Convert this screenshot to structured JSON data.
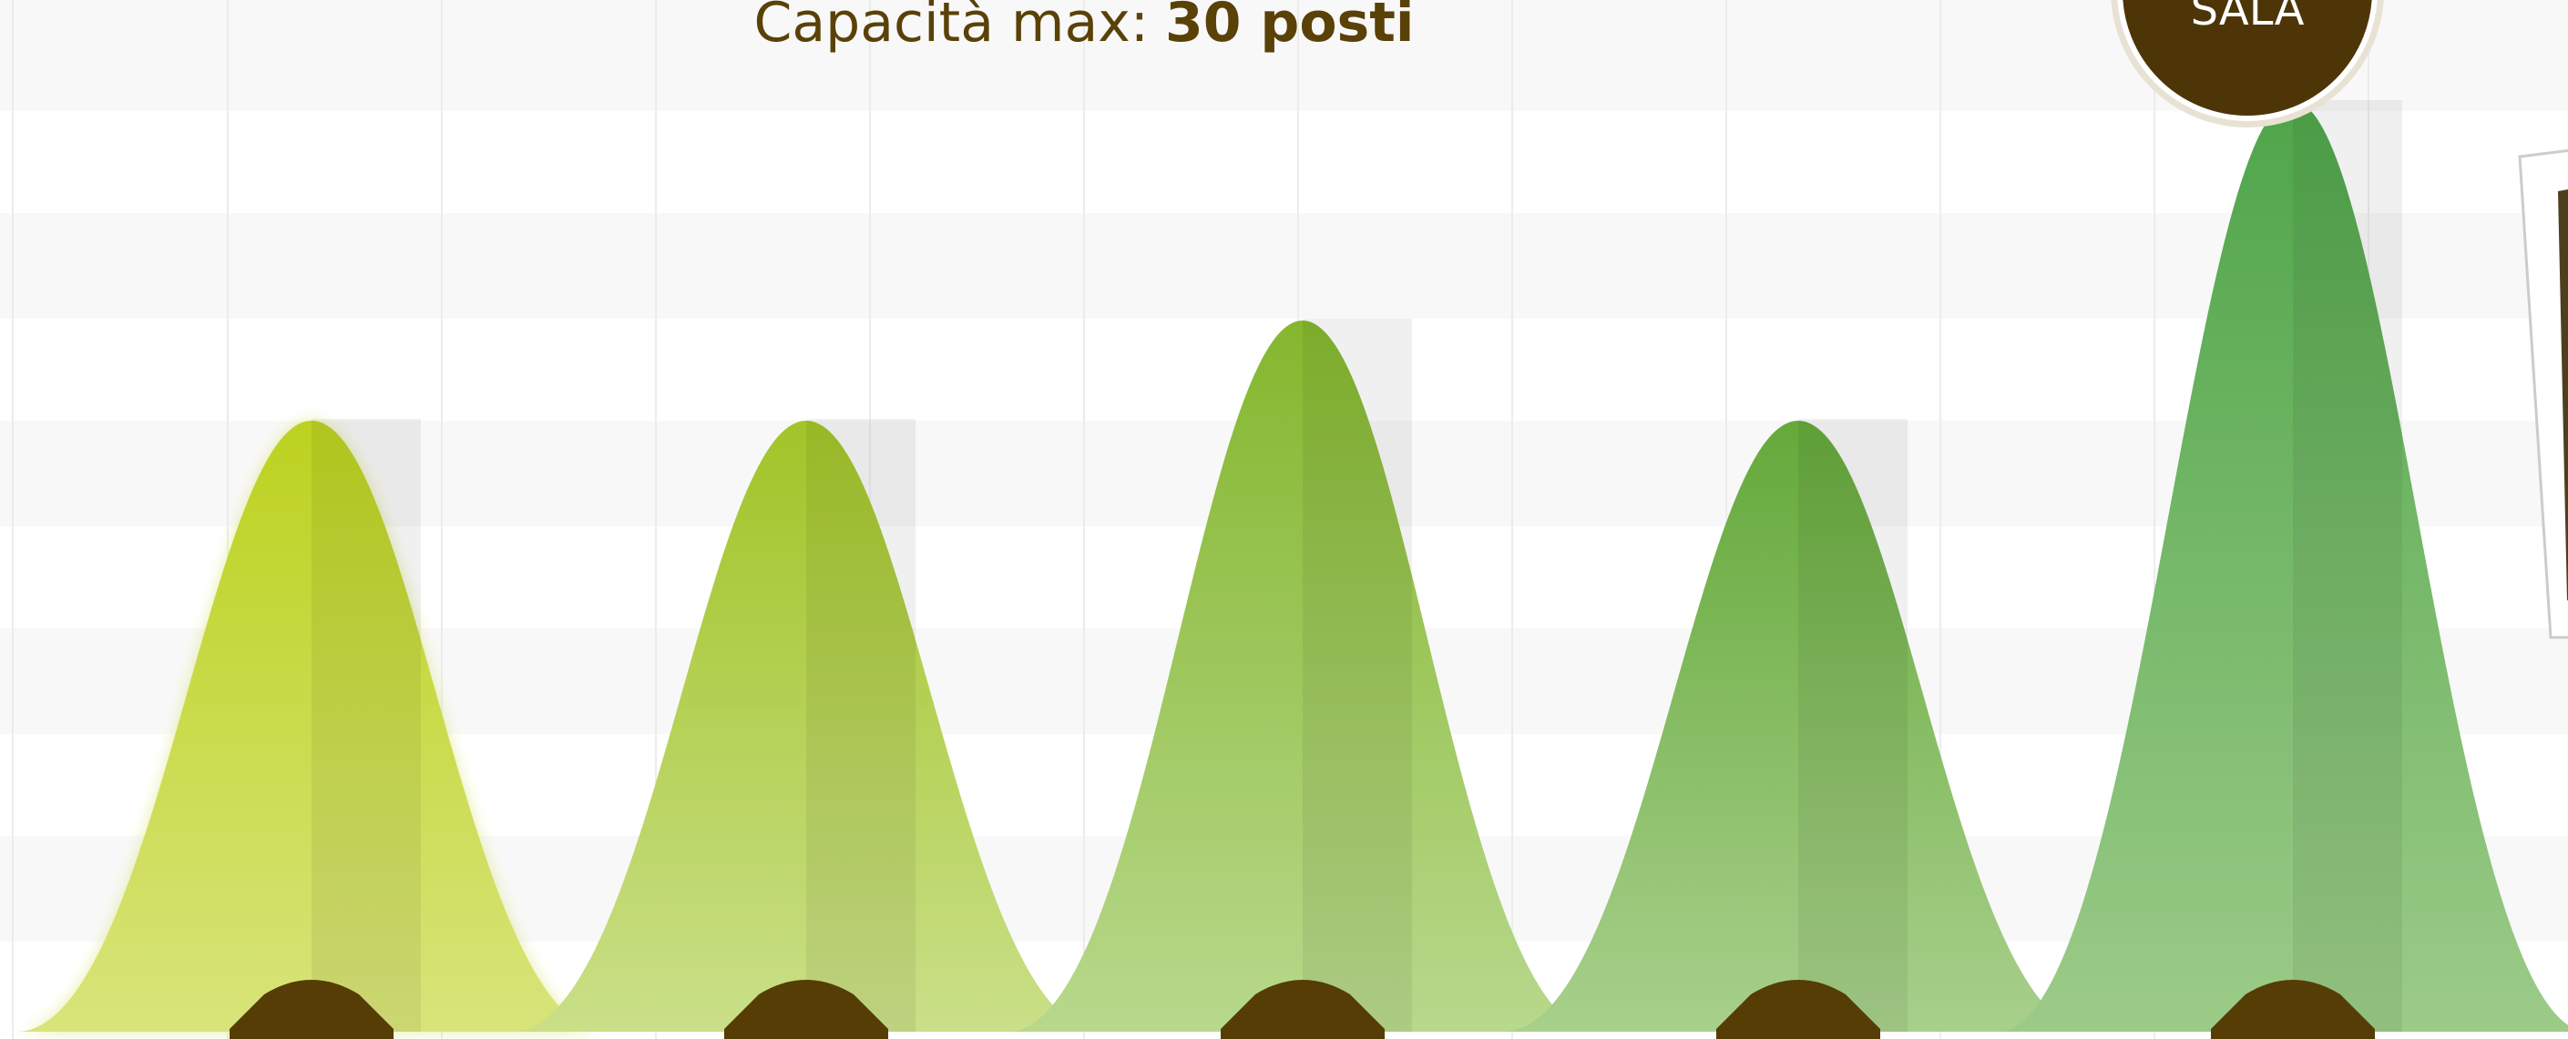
{
  "header": {
    "title_label": "Capacità max:",
    "title_value": "30 posti"
  },
  "badge": {
    "label": "SALA"
  }
}
